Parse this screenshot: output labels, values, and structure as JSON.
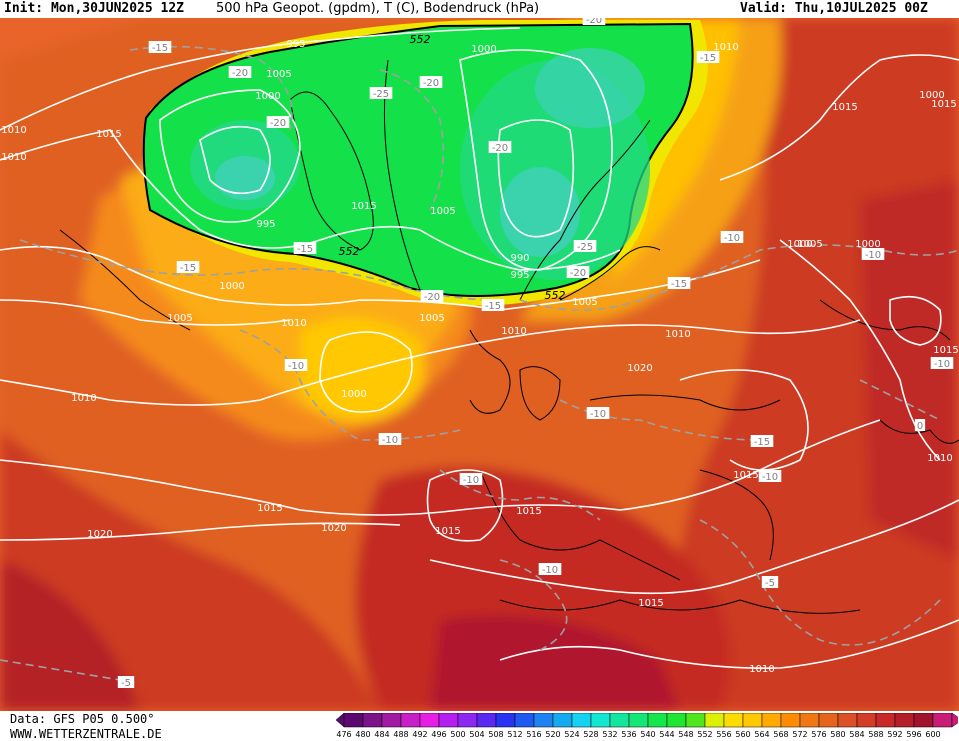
{
  "header": {
    "init": "Init: Mon,30JUN2025 12Z",
    "title": "500 hPa Geopot. (gpdm), T (C), Bodendruck (hPa)",
    "valid": "Valid: Thu,10JUL2025 00Z"
  },
  "footer": {
    "data_source": "Data: GFS P05 0.500°",
    "website": "WWW.WETTERZENTRALE.DE"
  },
  "scale": {
    "ticks": [
      "476",
      "480",
      "484",
      "488",
      "492",
      "496",
      "500",
      "504",
      "508",
      "512",
      "516",
      "520",
      "524",
      "528",
      "532",
      "536",
      "540",
      "544",
      "548",
      "552",
      "556",
      "560",
      "564",
      "568",
      "572",
      "576",
      "580",
      "584",
      "588",
      "592",
      "596",
      "600"
    ],
    "colors": [
      "#5a0a6e",
      "#7a1488",
      "#a01aa4",
      "#c81ec8",
      "#e61ee6",
      "#b41ef0",
      "#8c28f0",
      "#5a28f0",
      "#2832f0",
      "#1e5af0",
      "#1e82f0",
      "#14aaf0",
      "#14d2f0",
      "#14e6d2",
      "#14e6a0",
      "#14e678",
      "#14e64b",
      "#1ee632",
      "#50e61e",
      "#dcf000",
      "#ffdc00",
      "#ffc800",
      "#ffaa00",
      "#ff8c00",
      "#f07814",
      "#e6641e",
      "#dc5028",
      "#d23c28",
      "#c82828",
      "#b41e28",
      "#a0142d",
      "#c81e78"
    ]
  },
  "isobar_labels": [
    "1010",
    "1010",
    "1000",
    "995",
    "1000",
    "1005",
    "1000",
    "1015",
    "1015",
    "1005",
    "990",
    "995",
    "995",
    "1010",
    "1005",
    "1015",
    "1000",
    "1005",
    "1010",
    "1010",
    "1005",
    "1010",
    "1020",
    "1000",
    "1015",
    "1015",
    "1015",
    "1020",
    "1010",
    "1015",
    "1020",
    "1015",
    "1015",
    "1005",
    "1010",
    "1015",
    "1010",
    "1000",
    "1000"
  ],
  "temp_labels": [
    "-20",
    "-15",
    "-20",
    "-25",
    "-20",
    "-20",
    "-20",
    "-15",
    "-15",
    "-20",
    "-25",
    "-20",
    "-15",
    "-10",
    "-15",
    "-15",
    "-10",
    "-10",
    "-10",
    "-10",
    "-10",
    "-10",
    "-15",
    "-10",
    "-5",
    "-5",
    "0",
    "-10"
  ],
  "geopot_labels": [
    "552",
    "552",
    "552"
  ]
}
